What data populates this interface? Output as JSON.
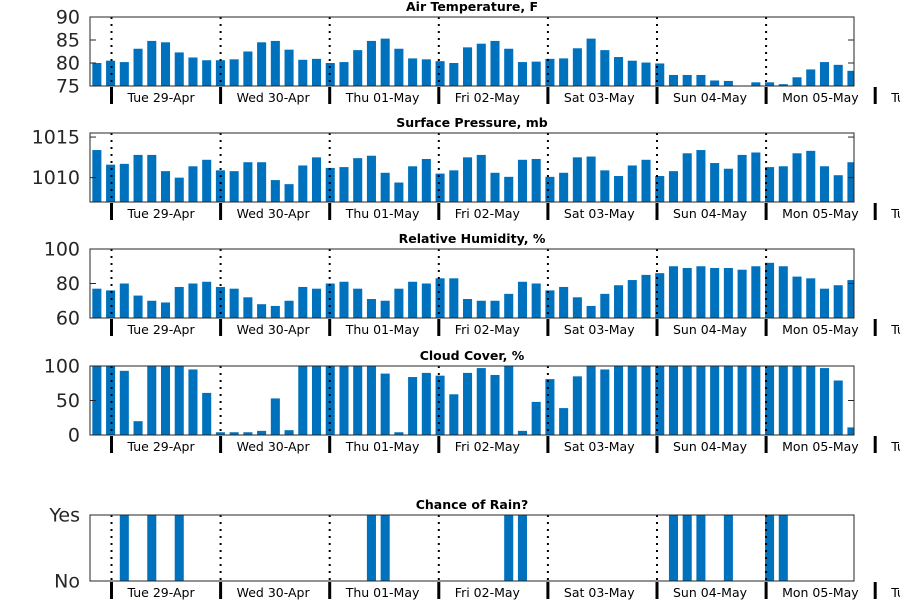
{
  "figure": {
    "bar_color": "#0072bd",
    "axes_color": "#262626",
    "day_tick_labels": [
      "Tue 29-Apr",
      "Wed 30-Apr",
      "Thu 01-May",
      "Fri 02-May",
      "Sat 03-May",
      "Sun 04-May",
      "Mon 05-May",
      "Tu"
    ]
  },
  "chart_data": [
    {
      "type": "bar",
      "title": "Air Temperature, F",
      "ylim": [
        75,
        90
      ],
      "yticks": [
        "75",
        "80",
        "85",
        "90"
      ],
      "values": [
        80.0,
        80.5,
        80.2,
        83.1,
        84.8,
        84.5,
        82.3,
        81.2,
        80.6,
        80.6,
        80.8,
        82.5,
        84.5,
        84.8,
        82.9,
        80.7,
        80.9,
        80.0,
        80.2,
        82.8,
        84.8,
        85.3,
        83.1,
        81.0,
        80.8,
        80.4,
        80.0,
        83.4,
        84.2,
        84.8,
        83.1,
        80.2,
        80.3,
        80.9,
        81.0,
        83.2,
        85.3,
        82.8,
        81.3,
        80.5,
        80.1,
        79.9,
        77.4,
        77.4,
        77.4,
        76.2,
        76.1,
        75.0,
        75.8,
        75.8,
        75.4,
        76.9,
        78.6,
        80.2,
        79.6,
        78.3
      ]
    },
    {
      "type": "bar",
      "title": "Surface Pressure, mb",
      "ylim": [
        1007,
        1015.5
      ],
      "yticks": [
        "1010",
        "1015"
      ],
      "values": [
        1013.4,
        1011.6,
        1011.7,
        1012.8,
        1012.8,
        1010.8,
        1010.0,
        1011.4,
        1012.2,
        1010.9,
        1010.8,
        1011.9,
        1011.9,
        1009.7,
        1009.2,
        1011.5,
        1012.5,
        1011.2,
        1011.3,
        1012.4,
        1012.7,
        1010.6,
        1009.4,
        1011.4,
        1012.3,
        1010.5,
        1010.9,
        1012.5,
        1012.8,
        1010.6,
        1010.1,
        1012.2,
        1012.3,
        1010.1,
        1010.6,
        1012.5,
        1012.6,
        1010.9,
        1010.2,
        1011.5,
        1012.2,
        1010.2,
        1010.8,
        1013.0,
        1013.4,
        1011.8,
        1011.1,
        1012.8,
        1013.1,
        1011.3,
        1011.4,
        1013.0,
        1013.3,
        1011.4,
        1010.3,
        1011.9
      ]
    },
    {
      "type": "bar",
      "title": "Relative Humidity, %",
      "ylim": [
        60,
        100
      ],
      "yticks": [
        "60",
        "80",
        "100"
      ],
      "values": [
        77,
        76,
        80,
        73,
        70,
        69,
        78,
        80,
        81,
        78,
        77,
        72,
        68,
        67,
        70,
        78,
        77,
        80,
        81,
        77,
        71,
        70,
        77,
        81,
        80,
        83,
        83,
        71,
        70,
        70,
        74,
        81,
        80,
        76,
        78,
        72,
        67,
        74,
        79,
        82,
        85,
        86,
        90,
        89,
        90,
        89,
        89,
        88,
        90,
        92,
        90,
        84,
        83,
        77,
        79,
        82
      ]
    },
    {
      "type": "bar",
      "title": "Cloud Cover, %",
      "ylim": [
        0,
        100
      ],
      "yticks": [
        "0",
        "50",
        "100"
      ],
      "values": [
        100,
        100,
        93,
        20,
        100,
        100,
        100,
        95,
        61,
        4,
        4,
        4,
        6,
        53,
        7,
        100,
        100,
        100,
        100,
        100,
        100,
        89,
        4,
        84,
        90,
        86,
        59,
        90,
        97,
        87,
        100,
        6,
        48,
        81,
        39,
        85,
        100,
        95,
        100,
        100,
        100,
        100,
        100,
        100,
        100,
        100,
        100,
        100,
        100,
        100,
        100,
        100,
        100,
        97,
        79,
        11
      ]
    },
    {
      "type": "bar",
      "title": "Chance of Rain?",
      "ylim": [
        0,
        1
      ],
      "yticks": [
        "No",
        "Yes"
      ],
      "values": [
        0,
        0,
        1,
        0,
        1,
        0,
        1,
        0,
        0,
        0,
        0,
        0,
        0,
        0,
        0,
        0,
        0,
        0,
        0,
        0,
        1,
        1,
        0,
        0,
        0,
        0,
        0,
        0,
        0,
        0,
        1,
        1,
        0,
        0,
        0,
        0,
        0,
        0,
        0,
        0,
        0,
        0,
        1,
        1,
        1,
        0,
        1,
        0,
        0,
        1,
        1,
        0,
        0,
        0,
        0,
        0
      ]
    }
  ]
}
